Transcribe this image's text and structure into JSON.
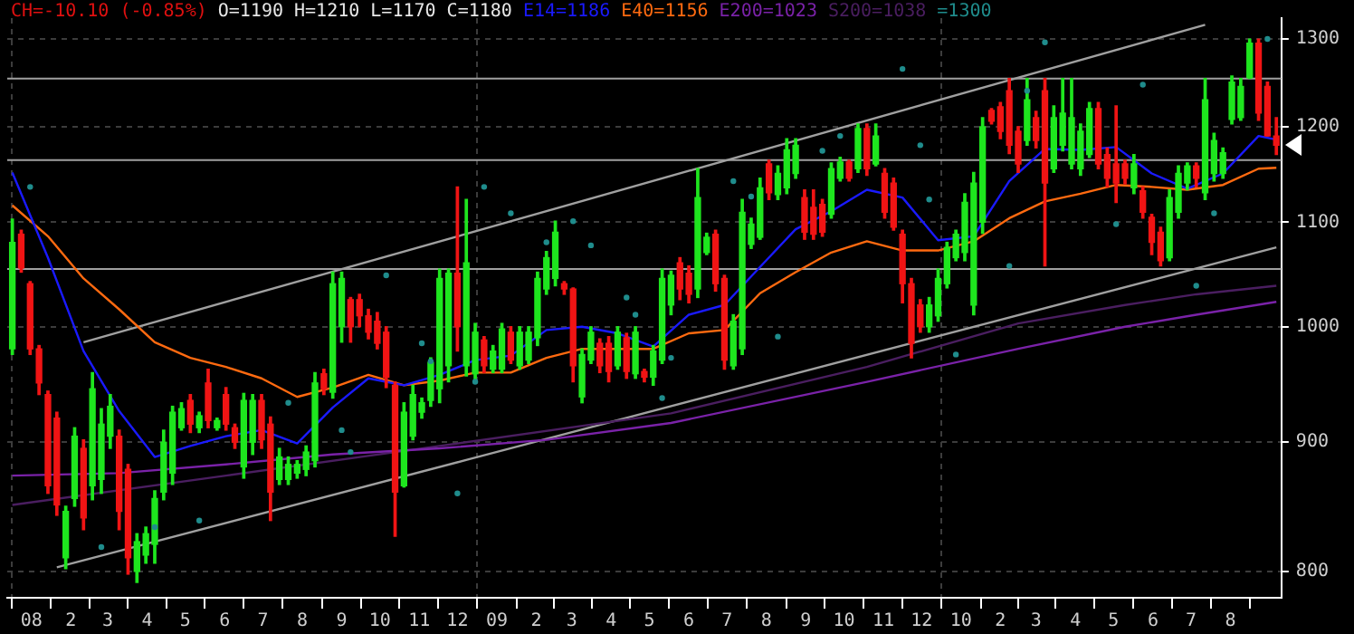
{
  "chart_data": {
    "type": "candlestick",
    "title": "CH=-10.10 (-0.85%)",
    "annotations": [
      "O=1190 H=1210 L=1170 C=1180"
    ],
    "x": [
      "2007-12-17",
      "2007-12-24",
      "2007-12-31",
      "2008-01-07",
      "2008-01-14",
      "2008-01-21",
      "2008-01-28",
      "2008-02-04",
      "2008-02-11",
      "2008-02-18",
      "2008-02-25",
      "2008-03-03",
      "2008-03-10",
      "2008-03-17",
      "2008-03-24",
      "2008-03-31",
      "2008-04-07",
      "2008-04-14",
      "2008-04-21",
      "2008-04-28",
      "2008-05-05",
      "2008-05-12",
      "2008-05-19",
      "2008-05-26",
      "2008-06-02",
      "2008-06-09",
      "2008-06-16",
      "2008-06-23",
      "2008-06-30",
      "2008-07-07",
      "2008-07-14",
      "2008-07-21",
      "2008-07-28",
      "2008-08-04",
      "2008-08-11",
      "2008-08-18",
      "2008-08-25",
      "2008-09-01",
      "2008-09-08",
      "2008-09-15",
      "2008-09-22",
      "2008-09-29",
      "2008-10-06",
      "2008-10-13",
      "2008-10-20",
      "2008-10-27",
      "2008-11-03",
      "2008-11-10",
      "2008-11-17",
      "2008-11-24",
      "2008-12-01",
      "2008-12-08",
      "2008-12-15",
      "2008-12-22",
      "2008-12-29",
      "2009-01-05",
      "2009-01-12",
      "2009-01-19",
      "2009-01-26",
      "2009-02-02",
      "2009-02-09",
      "2009-02-16",
      "2009-02-23",
      "2009-03-02",
      "2009-03-09",
      "2009-03-16",
      "2009-03-23",
      "2009-03-30",
      "2009-04-06",
      "2009-04-13",
      "2009-04-20",
      "2009-04-27",
      "2009-05-04",
      "2009-05-11",
      "2009-05-18",
      "2009-05-25",
      "2009-06-01",
      "2009-06-08",
      "2009-06-15",
      "2009-06-22",
      "2009-06-29",
      "2009-07-06",
      "2009-07-13",
      "2009-07-20",
      "2009-07-27",
      "2009-08-03",
      "2009-08-10",
      "2009-08-17",
      "2009-08-24",
      "2009-08-31",
      "2009-09-07",
      "2009-09-14",
      "2009-09-21",
      "2009-09-28",
      "2009-10-05",
      "2009-10-12",
      "2009-10-19",
      "2009-10-26",
      "2009-11-02",
      "2009-11-09",
      "2009-11-16",
      "2009-11-23",
      "2009-11-30",
      "2009-12-07",
      "2009-12-14",
      "2009-12-21",
      "2009-12-28",
      "2010-01-04",
      "2010-01-11",
      "2010-01-18",
      "2010-01-25",
      "2010-02-01",
      "2010-02-08",
      "2010-02-15",
      "2010-02-22",
      "2010-03-01",
      "2010-03-08",
      "2010-03-15",
      "2010-03-22",
      "2010-03-29",
      "2010-04-05",
      "2010-04-12",
      "2010-04-19",
      "2010-04-26",
      "2010-05-03",
      "2010-05-10",
      "2010-05-17",
      "2010-05-24",
      "2010-05-31",
      "2010-06-07",
      "2010-06-14",
      "2010-06-21",
      "2010-06-28",
      "2010-07-05",
      "2010-07-12",
      "2010-07-19",
      "2010-07-26",
      "2010-08-02",
      "2010-08-09",
      "2010-08-16",
      "2010-08-23",
      "2010-08-30",
      "2010-09-06"
    ],
    "ohlc": [
      [
        980,
        1103,
        975,
        1080
      ],
      [
        1088,
        1092,
        1051,
        1055
      ],
      [
        1040,
        1042,
        975,
        980
      ],
      [
        980,
        983,
        940,
        950
      ],
      [
        940,
        943,
        859,
        865
      ],
      [
        920,
        925,
        842,
        850
      ],
      [
        810,
        849,
        802,
        845
      ],
      [
        855,
        912,
        849,
        905
      ],
      [
        895,
        902,
        831,
        840
      ],
      [
        865,
        959,
        854,
        945
      ],
      [
        870,
        928,
        859,
        915
      ],
      [
        905,
        940,
        895,
        930
      ],
      [
        905,
        910,
        831,
        845
      ],
      [
        878,
        882,
        798,
        810
      ],
      [
        800,
        828,
        792,
        822
      ],
      [
        812,
        833,
        806,
        828
      ],
      [
        820,
        861,
        806,
        855
      ],
      [
        860,
        910,
        854,
        900
      ],
      [
        875,
        930,
        866,
        925
      ],
      [
        912,
        933,
        910,
        928
      ],
      [
        935,
        940,
        908,
        915
      ],
      [
        912,
        925,
        908,
        922
      ],
      [
        950,
        962,
        912,
        918
      ],
      [
        912,
        920,
        910,
        918
      ],
      [
        940,
        946,
        910,
        915
      ],
      [
        912,
        915,
        895,
        900
      ],
      [
        880,
        941,
        871,
        935
      ],
      [
        900,
        940,
        890,
        935
      ],
      [
        935,
        940,
        895,
        902
      ],
      [
        915,
        921,
        838,
        860
      ],
      [
        870,
        895,
        866,
        888
      ],
      [
        870,
        888,
        866,
        882
      ],
      [
        875,
        885,
        871,
        882
      ],
      [
        878,
        897,
        873,
        892
      ],
      [
        885,
        959,
        880,
        950
      ],
      [
        958,
        962,
        940,
        945
      ],
      [
        942,
        1051,
        937,
        1040
      ],
      [
        1000,
        1051,
        986,
        1045
      ],
      [
        1025,
        1027,
        986,
        1000
      ],
      [
        1025,
        1030,
        1000,
        1010
      ],
      [
        1010,
        1016,
        989,
        995
      ],
      [
        1005,
        1013,
        980,
        985
      ],
      [
        995,
        1000,
        946,
        955
      ],
      [
        948,
        951,
        826,
        860
      ],
      [
        865,
        933,
        864,
        925
      ],
      [
        905,
        948,
        902,
        940
      ],
      [
        925,
        937,
        920,
        933
      ],
      [
        935,
        972,
        930,
        968
      ],
      [
        945,
        1054,
        933,
        1045
      ],
      [
        965,
        1054,
        951,
        1050
      ],
      [
        1050,
        1136,
        978,
        1000
      ],
      [
        965,
        1123,
        956,
        1060
      ],
      [
        958,
        1003,
        951,
        995
      ],
      [
        988,
        991,
        959,
        965
      ],
      [
        962,
        983,
        959,
        978
      ],
      [
        962,
        1003,
        959,
        998
      ],
      [
        995,
        1000,
        967,
        970
      ],
      [
        965,
        1000,
        962,
        995
      ],
      [
        970,
        1000,
        967,
        995
      ],
      [
        990,
        1051,
        983,
        1045
      ],
      [
        1035,
        1071,
        1030,
        1065
      ],
      [
        1045,
        1101,
        1038,
        1090
      ],
      [
        1040,
        1042,
        1030,
        1035
      ],
      [
        1035,
        1036,
        951,
        965
      ],
      [
        938,
        980,
        933,
        975
      ],
      [
        970,
        1000,
        967,
        995
      ],
      [
        985,
        989,
        959,
        965
      ],
      [
        985,
        991,
        951,
        960
      ],
      [
        965,
        1000,
        962,
        995
      ],
      [
        990,
        994,
        954,
        960
      ],
      [
        958,
        1000,
        954,
        995
      ],
      [
        960,
        962,
        951,
        955
      ],
      [
        955,
        983,
        948,
        978
      ],
      [
        970,
        1054,
        967,
        1045
      ],
      [
        1020,
        1052,
        1011,
        1048
      ],
      [
        1060,
        1065,
        1025,
        1035
      ],
      [
        1050,
        1057,
        1022,
        1030
      ],
      [
        1035,
        1155,
        1027,
        1125
      ],
      [
        1070,
        1089,
        1068,
        1085
      ],
      [
        1088,
        1092,
        1033,
        1040
      ],
      [
        1045,
        1048,
        962,
        970
      ],
      [
        965,
        1011,
        962,
        1005
      ],
      [
        980,
        1123,
        975,
        1110
      ],
      [
        1078,
        1104,
        1074,
        1098
      ],
      [
        1085,
        1145,
        1083,
        1135
      ],
      [
        1160,
        1164,
        1123,
        1130
      ],
      [
        1128,
        1158,
        1123,
        1150
      ],
      [
        1135,
        1187,
        1129,
        1175
      ],
      [
        1150,
        1187,
        1145,
        1180
      ],
      [
        1125,
        1133,
        1083,
        1090
      ],
      [
        1115,
        1133,
        1083,
        1088
      ],
      [
        1118,
        1123,
        1086,
        1090
      ],
      [
        1108,
        1161,
        1104,
        1155
      ],
      [
        1145,
        1167,
        1142,
        1162
      ],
      [
        1162,
        1164,
        1142,
        1145
      ],
      [
        1155,
        1203,
        1151,
        1198
      ],
      [
        1198,
        1203,
        1148,
        1155
      ],
      [
        1160,
        1203,
        1158,
        1190
      ],
      [
        1150,
        1155,
        1104,
        1110
      ],
      [
        1140,
        1145,
        1092,
        1095
      ],
      [
        1088,
        1092,
        1022,
        1040
      ],
      [
        1040,
        1045,
        972,
        985
      ],
      [
        1020,
        1025,
        995,
        1000
      ],
      [
        1000,
        1027,
        995,
        1020
      ],
      [
        1010,
        1054,
        1005,
        1045
      ],
      [
        1040,
        1080,
        1036,
        1075
      ],
      [
        1065,
        1092,
        1062,
        1088
      ],
      [
        1070,
        1129,
        1062,
        1120
      ],
      [
        1020,
        1151,
        1011,
        1140
      ],
      [
        1100,
        1210,
        1089,
        1200
      ],
      [
        1218,
        1220,
        1203,
        1206
      ],
      [
        1222,
        1227,
        1187,
        1195
      ],
      [
        1240,
        1254,
        1171,
        1180
      ],
      [
        1195,
        1200,
        1151,
        1160
      ],
      [
        1185,
        1254,
        1180,
        1230
      ],
      [
        1210,
        1217,
        1177,
        1185
      ],
      [
        1240,
        1254,
        1057,
        1140
      ],
      [
        1155,
        1223,
        1151,
        1210
      ],
      [
        1180,
        1254,
        1174,
        1215
      ],
      [
        1160,
        1254,
        1155,
        1210
      ],
      [
        1155,
        1203,
        1148,
        1195
      ],
      [
        1170,
        1227,
        1167,
        1220
      ],
      [
        1220,
        1227,
        1155,
        1160
      ],
      [
        1170,
        1177,
        1136,
        1145
      ],
      [
        1160,
        1223,
        1120,
        1140
      ],
      [
        1160,
        1164,
        1139,
        1145
      ],
      [
        1135,
        1170,
        1129,
        1160
      ],
      [
        1132,
        1136,
        1104,
        1110
      ],
      [
        1105,
        1108,
        1068,
        1080
      ],
      [
        1090,
        1095,
        1057,
        1062
      ],
      [
        1065,
        1133,
        1062,
        1125
      ],
      [
        1110,
        1158,
        1104,
        1150
      ],
      [
        1140,
        1161,
        1133,
        1158
      ],
      [
        1158,
        1161,
        1136,
        1145
      ],
      [
        1130,
        1254,
        1123,
        1230
      ],
      [
        1150,
        1193,
        1142,
        1185
      ],
      [
        1150,
        1177,
        1145,
        1172
      ],
      [
        1208,
        1257,
        1203,
        1250
      ],
      [
        1210,
        1254,
        1207,
        1245
      ],
      [
        1255,
        1300,
        1254,
        1295
      ],
      [
        1295,
        1300,
        1207,
        1215
      ],
      [
        1245,
        1250,
        1190,
        1190
      ],
      [
        1190,
        1210,
        1170,
        1180
      ]
    ],
    "colors": [
      "#1ee61e",
      "#f01414",
      "#f01414",
      "#f01414",
      "#f01414",
      "#f01414",
      "#1ee61e",
      "#1ee61e",
      "#f01414",
      "#1ee61e",
      "#1ee61e",
      "#1ee61e",
      "#f01414",
      "#f01414",
      "#1ee61e",
      "#1ee61e",
      "#1ee61e",
      "#1ee61e",
      "#1ee61e",
      "#1ee61e",
      "#f01414",
      "#1ee61e",
      "#f01414",
      "#1ee61e",
      "#f01414",
      "#f01414",
      "#1ee61e",
      "#1ee61e",
      "#f01414",
      "#f01414",
      "#1ee61e",
      "#1ee61e",
      "#1ee61e",
      "#1ee61e",
      "#1ee61e",
      "#f01414",
      "#1ee61e",
      "#1ee61e",
      "#f01414",
      "#f01414",
      "#f01414",
      "#f01414",
      "#f01414",
      "#f01414",
      "#1ee61e",
      "#1ee61e",
      "#1ee61e",
      "#1ee61e",
      "#1ee61e",
      "#1ee61e",
      "#f01414",
      "#1ee61e",
      "#1ee61e",
      "#f01414",
      "#1ee61e",
      "#1ee61e",
      "#f01414",
      "#1ee61e",
      "#1ee61e",
      "#1ee61e",
      "#1ee61e",
      "#1ee61e",
      "#f01414",
      "#f01414",
      "#1ee61e",
      "#1ee61e",
      "#f01414",
      "#f01414",
      "#1ee61e",
      "#f01414",
      "#1ee61e",
      "#f01414",
      "#1ee61e",
      "#1ee61e",
      "#1ee61e",
      "#f01414",
      "#f01414",
      "#1ee61e",
      "#1ee61e",
      "#f01414",
      "#f01414",
      "#1ee61e",
      "#1ee61e",
      "#1ee61e",
      "#1ee61e",
      "#f01414",
      "#1ee61e",
      "#1ee61e",
      "#1ee61e",
      "#f01414",
      "#f01414",
      "#f01414",
      "#1ee61e",
      "#1ee61e",
      "#f01414",
      "#1ee61e",
      "#f01414",
      "#1ee61e",
      "#f01414",
      "#f01414",
      "#f01414",
      "#f01414",
      "#f01414",
      "#1ee61e",
      "#1ee61e",
      "#1ee61e",
      "#1ee61e",
      "#1ee61e",
      "#1ee61e",
      "#1ee61e",
      "#f01414",
      "#f01414",
      "#f01414",
      "#f01414",
      "#1ee61e",
      "#f01414",
      "#f01414",
      "#1ee61e",
      "#1ee61e",
      "#1ee61e",
      "#1ee61e",
      "#1ee61e",
      "#f01414",
      "#f01414",
      "#f01414",
      "#f01414",
      "#1ee61e",
      "#f01414",
      "#f01414",
      "#f01414",
      "#1ee61e",
      "#1ee61e",
      "#1ee61e",
      "#f01414",
      "#1ee61e",
      "#1ee61e",
      "#1ee61e",
      "#1ee61e",
      "#1ee61e",
      "#1ee61e",
      "#f01414",
      "#f01414",
      "#f01414"
    ],
    "series": [
      {
        "type": "line",
        "name": "E14=1186",
        "color": "#1a1aff",
        "x": [
          "2007-12-17",
          "2008-01-14",
          "2008-02-11",
          "2008-03-10",
          "2008-04-07",
          "2008-05-05",
          "2008-06-02",
          "2008-06-30",
          "2008-07-28",
          "2008-08-25",
          "2008-09-22",
          "2008-10-20",
          "2008-11-17",
          "2008-12-15",
          "2009-01-12",
          "2009-02-09",
          "2009-03-09",
          "2009-04-06",
          "2009-05-04",
          "2009-06-01",
          "2009-06-29",
          "2009-07-27",
          "2009-08-24",
          "2009-09-21",
          "2009-10-19",
          "2009-11-16",
          "2009-12-14",
          "2010-01-11",
          "2010-02-08",
          "2010-03-08",
          "2010-04-05",
          "2010-05-03",
          "2010-05-31",
          "2010-06-28",
          "2010-07-26",
          "2010-08-23",
          "2010-09-06"
        ],
        "values": [
          1151,
          1065,
          978,
          926,
          888,
          897,
          905,
          910,
          899,
          929,
          954,
          948,
          957,
          970,
          974,
          997,
          1000,
          994,
          982,
          1011,
          1020,
          1056,
          1093,
          1111,
          1133,
          1125,
          1082,
          1086,
          1142,
          1176,
          1175,
          1178,
          1150,
          1134,
          1150,
          1190,
          1186
        ]
      },
      {
        "type": "line",
        "name": "E40=1156",
        "color": "#ff6a10",
        "x": [
          "2007-12-17",
          "2008-01-14",
          "2008-02-11",
          "2008-03-10",
          "2008-04-07",
          "2008-05-05",
          "2008-06-02",
          "2008-06-30",
          "2008-07-28",
          "2008-08-25",
          "2008-09-22",
          "2008-10-20",
          "2008-11-17",
          "2008-12-15",
          "2009-01-12",
          "2009-02-09",
          "2009-03-09",
          "2009-04-06",
          "2009-05-04",
          "2009-06-01",
          "2009-06-29",
          "2009-07-27",
          "2009-08-24",
          "2009-09-21",
          "2009-10-19",
          "2009-11-16",
          "2009-12-14",
          "2010-01-11",
          "2010-02-08",
          "2010-03-08",
          "2010-04-05",
          "2010-05-03",
          "2010-05-31",
          "2010-06-28",
          "2010-07-26",
          "2010-08-23",
          "2010-09-06"
        ],
        "values": [
          1117,
          1086,
          1045,
          1016,
          986,
          972,
          964,
          954,
          938,
          946,
          957,
          948,
          952,
          959,
          959,
          972,
          980,
          980,
          980,
          994,
          997,
          1031,
          1051,
          1070,
          1081,
          1072,
          1072,
          1081,
          1104,
          1121,
          1129,
          1138,
          1136,
          1133,
          1138,
          1155,
          1156
        ]
      },
      {
        "type": "line",
        "name": "E200=1023",
        "color": "#7a22a8",
        "x": [
          "2007-12-17",
          "2008-03-10",
          "2008-06-02",
          "2008-08-25",
          "2008-11-17",
          "2009-02-09",
          "2009-05-18",
          "2009-10-19",
          "2010-02-15",
          "2010-05-10",
          "2010-07-05",
          "2010-09-06"
        ],
        "values": [
          873,
          875,
          882,
          890,
          895,
          902,
          916,
          951,
          980,
          1000,
          1011,
          1023
        ]
      },
      {
        "type": "line",
        "name": "S200=1038",
        "color": "#4a1e60",
        "x": [
          "2007-12-17",
          "2008-06-02",
          "2008-11-17",
          "2009-05-18",
          "2009-10-19",
          "2010-02-15",
          "2010-05-10",
          "2010-07-05",
          "2010-09-06"
        ],
        "values": [
          850,
          873,
          897,
          924,
          964,
          1003,
          1020,
          1030,
          1038
        ]
      },
      {
        "type": "line",
        "color": "#a0a0a0",
        "x": [
          "2008-02-11",
          "2010-07-12"
        ],
        "values": [
          986,
          1317
        ]
      },
      {
        "type": "line",
        "color": "#a0a0a0",
        "x": [
          "2008-01-21",
          "2010-09-06"
        ],
        "values": [
          803,
          1075
        ]
      },
      {
        "type": "scatter",
        "name": "=1300",
        "color": "#1f8c8c",
        "x": [
          "2007-12-31",
          "2008-02-25",
          "2008-04-07",
          "2008-05-12",
          "2008-07-21",
          "2008-09-01",
          "2008-09-08",
          "2008-10-06",
          "2008-11-03",
          "2008-11-10",
          "2008-12-01",
          "2008-12-15",
          "2008-12-22",
          "2009-01-12",
          "2009-02-09",
          "2009-03-02",
          "2009-03-16",
          "2009-04-13",
          "2009-04-20",
          "2009-05-11",
          "2009-05-18",
          "2009-07-06",
          "2009-07-20",
          "2009-08-10",
          "2009-09-14",
          "2009-09-28",
          "2009-11-16",
          "2009-11-30",
          "2009-12-07",
          "2009-12-28",
          "2010-02-08",
          "2010-02-22",
          "2010-03-08",
          "2010-05-03",
          "2010-05-24",
          "2010-07-05",
          "2010-07-19",
          "2010-08-30"
        ],
        "values": [
          1136,
          818,
          833,
          838,
          933,
          910,
          892,
          1048,
          985,
          969,
          859,
          951,
          1136,
          1109,
          1080,
          1101,
          1077,
          1027,
          1011,
          937,
          972,
          1142,
          1126,
          991,
          1174,
          1190,
          1265,
          1180,
          1123,
          975,
          1057,
          1240,
          1296,
          1098,
          1247,
          1038,
          1109,
          1300
        ]
      }
    ],
    "ref_lines": [
      {
        "axis": "y",
        "value": 1254,
        "color": "#a0a0a0"
      },
      {
        "axis": "y",
        "value": 1164,
        "color": "#a0a0a0"
      },
      {
        "axis": "y",
        "value": 1054,
        "color": "#a0a0a0"
      }
    ],
    "xlim": [
      "2007-12-13",
      "2010-09-10"
    ],
    "xticks": [
      {
        "value": "2008-01",
        "label": "08"
      },
      {
        "value": "2008-02",
        "label": "2"
      },
      {
        "value": "2008-03",
        "label": "3"
      },
      {
        "value": "2008-04",
        "label": "4"
      },
      {
        "value": "2008-05",
        "label": "5"
      },
      {
        "value": "2008-06",
        "label": "6"
      },
      {
        "value": "2008-07",
        "label": "7"
      },
      {
        "value": "2008-08",
        "label": "8"
      },
      {
        "value": "2008-09",
        "label": "9"
      },
      {
        "value": "2008-10",
        "label": "10"
      },
      {
        "value": "2008-11",
        "label": "11"
      },
      {
        "value": "2008-12",
        "label": "12"
      },
      {
        "value": "2009-01",
        "label": "09"
      },
      {
        "value": "2009-02",
        "label": "2"
      },
      {
        "value": "2009-03",
        "label": "3"
      },
      {
        "value": "2009-04",
        "label": "4"
      },
      {
        "value": "2009-05",
        "label": "5"
      },
      {
        "value": "2009-06",
        "label": "6"
      },
      {
        "value": "2009-07",
        "label": "7"
      },
      {
        "value": "2009-08",
        "label": "8"
      },
      {
        "value": "2009-09",
        "label": "9"
      },
      {
        "value": "2009-10",
        "label": "10"
      },
      {
        "value": "2009-11",
        "label": "11"
      },
      {
        "value": "2009-12",
        "label": "12"
      },
      {
        "value": "2010-01",
        "label": "10"
      },
      {
        "value": "2010-02",
        "label": "2"
      },
      {
        "value": "2010-03",
        "label": "3"
      },
      {
        "value": "2010-04",
        "label": "4"
      },
      {
        "value": "2010-05",
        "label": "5"
      },
      {
        "value": "2010-06",
        "label": "6"
      },
      {
        "value": "2010-07",
        "label": "7"
      },
      {
        "value": "2010-08",
        "label": "8"
      }
    ],
    "ylim": [
      781,
      1325
    ],
    "yticks": [
      800,
      900,
      1000,
      1100,
      1200,
      1300
    ],
    "log": true,
    "grid": true
  }
}
